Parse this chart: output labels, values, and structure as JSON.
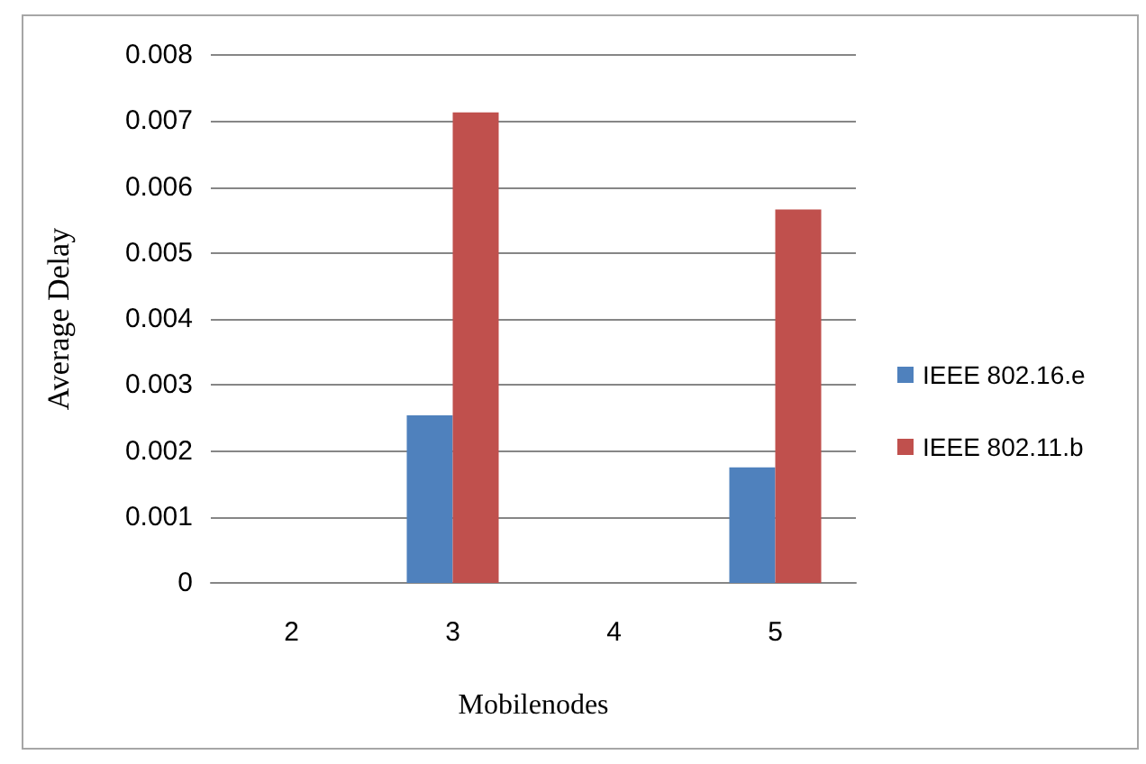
{
  "chart_data": {
    "type": "bar",
    "xlabel": "Mobilenodes",
    "ylabel": "Average Delay",
    "categories": [
      "2",
      "3",
      "4",
      "5"
    ],
    "series": [
      {
        "name": "IEEE 802.16.e",
        "color": "#4f81bd",
        "values": [
          null,
          0.00254,
          null,
          0.00175
        ]
      },
      {
        "name": "IEEE 802.11.b",
        "color": "#c0504d",
        "values": [
          null,
          0.00713,
          null,
          0.00566
        ]
      }
    ],
    "ylim": [
      0,
      0.008
    ],
    "yticks": [
      0,
      0.001,
      0.002,
      0.003,
      0.004,
      0.005,
      0.006,
      0.007,
      0.008
    ],
    "grid": "y",
    "legend": "right"
  }
}
